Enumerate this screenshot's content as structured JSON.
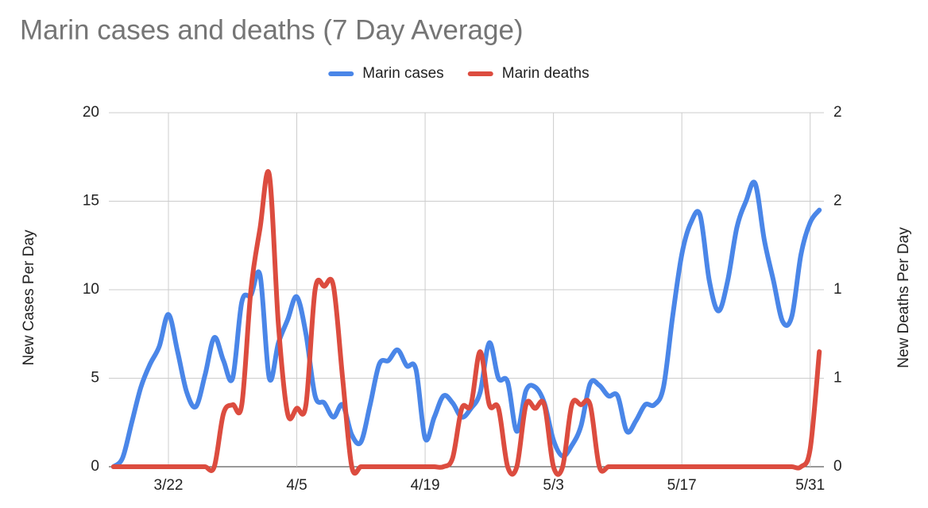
{
  "chart_data": {
    "type": "line",
    "title": "Marin cases and deaths (7 Day Average)",
    "y_label": "New Cases Per Day",
    "y2_label": "New Deaths Per Day",
    "categories": [
      null,
      null,
      null,
      null,
      null,
      null,
      "3/22",
      null,
      null,
      null,
      null,
      null,
      null,
      null,
      null,
      null,
      null,
      null,
      null,
      null,
      "4/5",
      null,
      null,
      null,
      null,
      null,
      null,
      null,
      null,
      null,
      null,
      null,
      null,
      null,
      "4/19",
      null,
      null,
      null,
      null,
      null,
      null,
      null,
      null,
      null,
      null,
      null,
      null,
      null,
      "5/3",
      null,
      null,
      null,
      null,
      null,
      null,
      null,
      null,
      null,
      null,
      null,
      null,
      null,
      "5/17",
      null,
      null,
      null,
      null,
      null,
      null,
      null,
      null,
      null,
      null,
      null,
      null,
      null,
      "5/31",
      null
    ],
    "series": [
      {
        "name": "Marin cases",
        "color": "#4a86e8",
        "values": [
          0,
          0.5,
          2.5,
          4.5,
          5.8,
          6.8,
          8.6,
          6.5,
          4.2,
          3.4,
          5.2,
          7.3,
          6,
          5.0,
          9.3,
          9.7,
          10.8,
          5.0,
          7,
          8.3,
          9.6,
          7.5,
          4.0,
          3.6,
          2.8,
          3.5,
          1.8,
          1.4,
          3.5,
          5.8,
          6.0,
          6.6,
          5.7,
          5.5,
          1.6,
          2.8,
          4.0,
          3.6,
          2.8,
          3.3,
          4.2,
          7.0,
          5.0,
          4.8,
          2.0,
          4.3,
          4.5,
          3.6,
          1.5,
          0.6,
          1.2,
          2.3,
          4.7,
          4.6,
          4.0,
          4.0,
          2.0,
          2.6,
          3.5,
          3.5,
          4.5,
          8.5,
          12,
          13.8,
          14.2,
          10.5,
          8.8,
          10.5,
          13.5,
          15,
          16.0,
          12.8,
          10.5,
          8.2,
          8.5,
          12.0,
          13.8,
          14.5
        ]
      },
      {
        "name": "Marin deaths",
        "color": "#dc4c3f",
        "axis": "y2",
        "values": [
          0,
          0,
          0,
          0,
          0,
          0,
          0,
          0,
          0,
          0,
          0,
          0,
          0.3,
          0.35,
          0.35,
          1.0,
          1.35,
          1.65,
          0.8,
          0.3,
          0.33,
          0.35,
          1.0,
          1.02,
          1.02,
          0.5,
          0,
          0,
          0,
          0,
          0,
          0,
          0,
          0,
          0,
          0,
          0,
          0.05,
          0.33,
          0.35,
          0.65,
          0.35,
          0.33,
          0,
          0,
          0.35,
          0.33,
          0.35,
          0,
          0,
          0.35,
          0.35,
          0.35,
          0,
          0,
          0,
          0,
          0,
          0,
          0,
          0,
          0,
          0,
          0,
          0,
          0,
          0,
          0,
          0,
          0,
          0,
          0,
          0,
          0,
          0,
          0,
          0.1,
          0.65
        ]
      }
    ],
    "ylim": [
      0,
      20
    ],
    "yticks": [
      0,
      5,
      10,
      15,
      20
    ],
    "y2lim": [
      0,
      2
    ],
    "y2ticks": [
      0,
      {
        "value": 0.5,
        "label": "1"
      },
      1,
      {
        "value": 1.5,
        "label": "2"
      },
      2
    ],
    "grid": true,
    "legend": "top"
  }
}
